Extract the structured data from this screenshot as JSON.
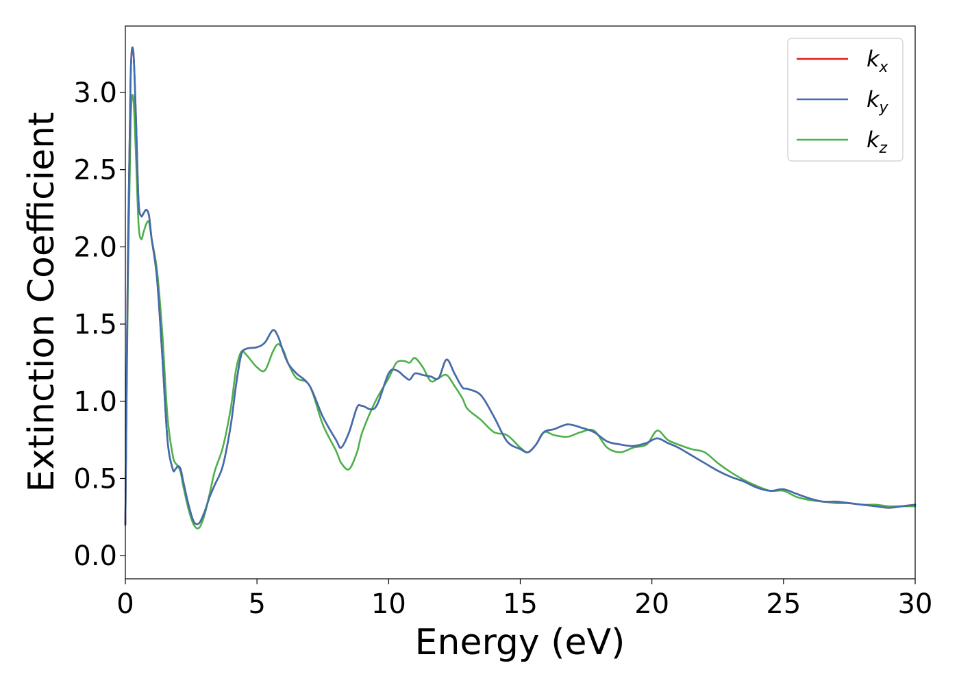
{
  "chart_data": {
    "type": "line",
    "xlabel": "Energy (eV)",
    "ylabel": "Extinction Coefficient",
    "xlim": [
      0,
      30
    ],
    "ylim": [
      -0.15,
      3.43
    ],
    "xticks": [
      "0",
      "5",
      "10",
      "15",
      "20",
      "25",
      "30"
    ],
    "yticks": [
      "0.0",
      "0.5",
      "1.0",
      "1.5",
      "2.0",
      "2.5",
      "3.0"
    ],
    "grid": false,
    "legend_position": "top-right",
    "series": [
      {
        "name": "k_x",
        "legend_main": "k",
        "legend_sub": "x",
        "color": "#e41a1c",
        "x": [
          0,
          0.1,
          0.2,
          0.3,
          0.4,
          0.5,
          0.6,
          0.7,
          0.8,
          0.9,
          1.0,
          1.2,
          1.4,
          1.6,
          1.8,
          1.9,
          2.0,
          2.1,
          2.2,
          2.4,
          2.6,
          2.8,
          3.0,
          3.2,
          3.4,
          3.7,
          4.0,
          4.2,
          4.4,
          4.6,
          5.0,
          5.3,
          5.6,
          5.8,
          6.0,
          6.2,
          6.5,
          7.0,
          7.5,
          8.0,
          8.2,
          8.5,
          8.8,
          9.0,
          9.5,
          10.0,
          10.3,
          10.6,
          10.8,
          11.0,
          11.3,
          11.6,
          11.9,
          12.2,
          12.5,
          12.8,
          13.0,
          13.5,
          14.0,
          14.5,
          15.0,
          15.3,
          15.6,
          15.9,
          16.3,
          16.8,
          17.3,
          17.8,
          18.3,
          18.8,
          19.3,
          19.8,
          20.2,
          20.6,
          21.0,
          21.5,
          22.0,
          22.5,
          23.0,
          23.5,
          24.0,
          24.5,
          25.0,
          25.5,
          26.0,
          26.5,
          27.0,
          27.5,
          28.0,
          28.5,
          29.0,
          29.5,
          30.0
        ],
        "y": [
          0.2,
          2.0,
          3.1,
          3.27,
          2.85,
          2.3,
          2.2,
          2.22,
          2.24,
          2.2,
          2.05,
          1.8,
          1.3,
          0.75,
          0.56,
          0.56,
          0.58,
          0.56,
          0.48,
          0.33,
          0.22,
          0.21,
          0.28,
          0.38,
          0.46,
          0.58,
          0.84,
          1.1,
          1.3,
          1.34,
          1.35,
          1.38,
          1.46,
          1.42,
          1.32,
          1.24,
          1.18,
          1.1,
          0.9,
          0.75,
          0.7,
          0.8,
          0.96,
          0.97,
          0.96,
          1.18,
          1.2,
          1.16,
          1.14,
          1.18,
          1.17,
          1.16,
          1.15,
          1.27,
          1.18,
          1.09,
          1.08,
          1.04,
          0.9,
          0.74,
          0.69,
          0.67,
          0.72,
          0.8,
          0.82,
          0.85,
          0.83,
          0.8,
          0.74,
          0.72,
          0.71,
          0.73,
          0.76,
          0.73,
          0.7,
          0.65,
          0.6,
          0.55,
          0.51,
          0.48,
          0.44,
          0.42,
          0.43,
          0.4,
          0.37,
          0.35,
          0.35,
          0.34,
          0.33,
          0.32,
          0.31,
          0.32,
          0.33
        ]
      },
      {
        "name": "k_y",
        "legend_main": "k",
        "legend_sub": "y",
        "color": "#3e6fb0",
        "x": [
          0,
          0.1,
          0.2,
          0.3,
          0.4,
          0.5,
          0.6,
          0.7,
          0.8,
          0.9,
          1.0,
          1.2,
          1.4,
          1.6,
          1.8,
          1.9,
          2.0,
          2.1,
          2.2,
          2.4,
          2.6,
          2.8,
          3.0,
          3.2,
          3.4,
          3.7,
          4.0,
          4.2,
          4.4,
          4.6,
          5.0,
          5.3,
          5.6,
          5.8,
          6.0,
          6.2,
          6.5,
          7.0,
          7.5,
          8.0,
          8.2,
          8.5,
          8.8,
          9.0,
          9.5,
          10.0,
          10.3,
          10.6,
          10.8,
          11.0,
          11.3,
          11.6,
          11.9,
          12.2,
          12.5,
          12.8,
          13.0,
          13.5,
          14.0,
          14.5,
          15.0,
          15.3,
          15.6,
          15.9,
          16.3,
          16.8,
          17.3,
          17.8,
          18.3,
          18.8,
          19.3,
          19.8,
          20.2,
          20.6,
          21.0,
          21.5,
          22.0,
          22.5,
          23.0,
          23.5,
          24.0,
          24.5,
          25.0,
          25.5,
          26.0,
          26.5,
          27.0,
          27.5,
          28.0,
          28.5,
          29.0,
          29.5,
          30.0
        ],
        "y": [
          0.2,
          2.0,
          3.1,
          3.27,
          2.85,
          2.3,
          2.2,
          2.22,
          2.24,
          2.2,
          2.05,
          1.8,
          1.3,
          0.75,
          0.56,
          0.56,
          0.58,
          0.56,
          0.48,
          0.33,
          0.22,
          0.21,
          0.28,
          0.38,
          0.46,
          0.58,
          0.84,
          1.1,
          1.3,
          1.34,
          1.35,
          1.38,
          1.46,
          1.42,
          1.32,
          1.24,
          1.18,
          1.1,
          0.9,
          0.75,
          0.7,
          0.8,
          0.96,
          0.97,
          0.96,
          1.18,
          1.2,
          1.16,
          1.14,
          1.18,
          1.17,
          1.16,
          1.15,
          1.27,
          1.18,
          1.09,
          1.08,
          1.04,
          0.9,
          0.74,
          0.69,
          0.67,
          0.72,
          0.8,
          0.82,
          0.85,
          0.83,
          0.8,
          0.74,
          0.72,
          0.71,
          0.73,
          0.76,
          0.73,
          0.7,
          0.65,
          0.6,
          0.55,
          0.51,
          0.48,
          0.44,
          0.42,
          0.43,
          0.4,
          0.37,
          0.35,
          0.35,
          0.34,
          0.33,
          0.32,
          0.31,
          0.32,
          0.33
        ]
      },
      {
        "name": "k_z",
        "legend_main": "k",
        "legend_sub": "z",
        "color": "#4daf4a",
        "x": [
          0,
          0.1,
          0.2,
          0.3,
          0.4,
          0.5,
          0.6,
          0.7,
          0.8,
          0.9,
          1.0,
          1.2,
          1.4,
          1.6,
          1.8,
          1.9,
          2.0,
          2.1,
          2.2,
          2.4,
          2.6,
          2.8,
          3.0,
          3.2,
          3.4,
          3.7,
          4.0,
          4.2,
          4.4,
          4.6,
          5.0,
          5.3,
          5.6,
          5.8,
          6.0,
          6.2,
          6.5,
          7.0,
          7.5,
          8.0,
          8.2,
          8.5,
          8.8,
          9.0,
          9.5,
          10.0,
          10.3,
          10.6,
          10.8,
          11.0,
          11.3,
          11.6,
          11.9,
          12.2,
          12.5,
          12.8,
          13.0,
          13.5,
          14.0,
          14.5,
          15.0,
          15.3,
          15.6,
          15.9,
          16.3,
          16.8,
          17.3,
          17.8,
          18.3,
          18.8,
          19.3,
          19.8,
          20.2,
          20.6,
          21.0,
          21.5,
          22.0,
          22.5,
          23.0,
          23.5,
          24.0,
          24.5,
          25.0,
          25.5,
          26.0,
          26.5,
          27.0,
          27.5,
          28.0,
          28.5,
          29.0,
          29.5,
          30.0
        ],
        "y": [
          0.2,
          1.8,
          2.8,
          2.97,
          2.6,
          2.15,
          2.05,
          2.1,
          2.15,
          2.16,
          2.05,
          1.85,
          1.45,
          0.9,
          0.65,
          0.6,
          0.58,
          0.54,
          0.45,
          0.3,
          0.2,
          0.18,
          0.26,
          0.4,
          0.55,
          0.7,
          0.95,
          1.2,
          1.32,
          1.3,
          1.22,
          1.2,
          1.32,
          1.37,
          1.33,
          1.24,
          1.15,
          1.1,
          0.85,
          0.68,
          0.6,
          0.56,
          0.67,
          0.8,
          1.0,
          1.15,
          1.25,
          1.26,
          1.25,
          1.28,
          1.22,
          1.13,
          1.15,
          1.17,
          1.1,
          1.02,
          0.95,
          0.88,
          0.8,
          0.78,
          0.7,
          0.67,
          0.72,
          0.8,
          0.78,
          0.77,
          0.8,
          0.81,
          0.7,
          0.67,
          0.7,
          0.72,
          0.81,
          0.75,
          0.72,
          0.69,
          0.67,
          0.6,
          0.54,
          0.49,
          0.45,
          0.42,
          0.42,
          0.38,
          0.36,
          0.35,
          0.34,
          0.34,
          0.33,
          0.33,
          0.32,
          0.32,
          0.32
        ]
      }
    ]
  }
}
